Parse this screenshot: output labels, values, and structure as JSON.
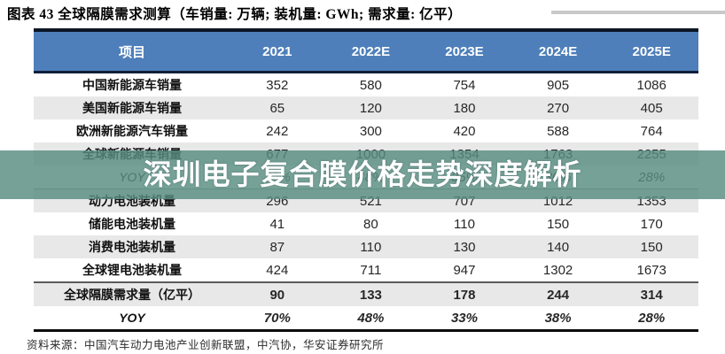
{
  "title": "图表 43 全球隔膜需求测算（车销量: 万辆; 装机量: GWh; 需求量: 亿平）",
  "watermark": "深圳电子复合膜价格走势深度解析",
  "footer": "资料来源：中国汽车动力电池产业创新联盟，中汽协，华安证券研究所",
  "colors": {
    "header_bg": "#4e7fba",
    "row_stripe": "#e8e8e8",
    "watermark_band": "rgba(88,140,128,0.82)",
    "table_border": "#0c1626"
  },
  "chart_data": {
    "type": "table",
    "title": "全球隔膜需求测算（车销量: 万辆; 装机量: GWh; 需求量: 亿平）",
    "columns": [
      "项目",
      "2021",
      "2022E",
      "2023E",
      "2024E",
      "2025E"
    ],
    "rows": [
      {
        "label": "中国新能源车销量",
        "values": [
          "352",
          "580",
          "754",
          "905",
          "1086"
        ]
      },
      {
        "label": "美国新能源车销量",
        "values": [
          "65",
          "120",
          "180",
          "270",
          "405"
        ]
      },
      {
        "label": "欧洲新能源汽车销量",
        "values": [
          "242",
          "300",
          "420",
          "588",
          "764"
        ]
      },
      {
        "label": "全球新能源车销量",
        "values": [
          "677",
          "1000",
          "1354",
          "1763",
          "2255"
        ]
      },
      {
        "label": "YOY",
        "values": [
          "72%",
          "48%",
          "35%",
          "30%",
          "28%"
        ]
      },
      {
        "label": "动力电池装机量",
        "values": [
          "296",
          "521",
          "707",
          "1012",
          "1353"
        ]
      },
      {
        "label": "储能电池装机量",
        "values": [
          "41",
          "80",
          "110",
          "150",
          "170"
        ]
      },
      {
        "label": "消费电池装机量",
        "values": [
          "87",
          "110",
          "130",
          "140",
          "150"
        ]
      },
      {
        "label": "全球锂电池装机量",
        "values": [
          "424",
          "711",
          "947",
          "1302",
          "1673"
        ]
      },
      {
        "label": "全球隔膜需求量（亿平）",
        "values": [
          "90",
          "133",
          "178",
          "244",
          "314"
        ]
      },
      {
        "label": "YOY",
        "values": [
          "70%",
          "48%",
          "33%",
          "38%",
          "28%"
        ]
      }
    ]
  }
}
